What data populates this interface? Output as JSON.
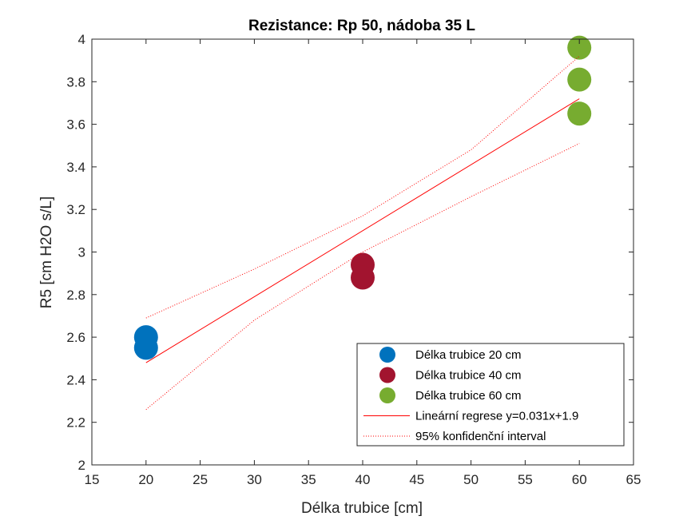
{
  "chart_data": {
    "type": "scatter",
    "title": "Rezistance: Rp 50, nádoba 35 L",
    "xlabel": "Délka trubice [cm]",
    "ylabel": "R5 [cm H2O s/L]",
    "xlim": [
      15,
      65
    ],
    "ylim": [
      2,
      4
    ],
    "xticks": [
      15,
      20,
      25,
      30,
      35,
      40,
      45,
      50,
      55,
      60,
      65
    ],
    "yticks": [
      2,
      2.2,
      2.4,
      2.6,
      2.8,
      3,
      3.2,
      3.4,
      3.6,
      3.8,
      4
    ],
    "grid": false,
    "legend_position": "bottom-right",
    "series": [
      {
        "name": "Délka trubice 20 cm",
        "kind": "scatter",
        "color": "#0072BD",
        "x": [
          20,
          20
        ],
        "y": [
          2.6,
          2.55
        ]
      },
      {
        "name": "Délka trubice 40 cm",
        "kind": "scatter",
        "color": "#A2142F",
        "x": [
          40,
          40
        ],
        "y": [
          2.94,
          2.88
        ]
      },
      {
        "name": "Délka trubice 60 cm",
        "kind": "scatter",
        "color": "#77AC30",
        "x": [
          60,
          60,
          60
        ],
        "y": [
          3.96,
          3.81,
          3.65
        ]
      },
      {
        "name": "Lineární regrese y=0.031x+1.9",
        "kind": "line",
        "color": "#FF0000",
        "x": [
          20,
          60
        ],
        "y": [
          2.48,
          3.72
        ]
      },
      {
        "name": "95% konfidenční interval",
        "kind": "ci",
        "color": "#FF0000",
        "x": [
          20,
          30,
          40,
          50,
          60
        ],
        "upper": [
          2.69,
          2.92,
          3.17,
          3.48,
          3.92
        ],
        "lower": [
          2.26,
          2.68,
          3.0,
          3.26,
          3.51
        ]
      }
    ]
  }
}
